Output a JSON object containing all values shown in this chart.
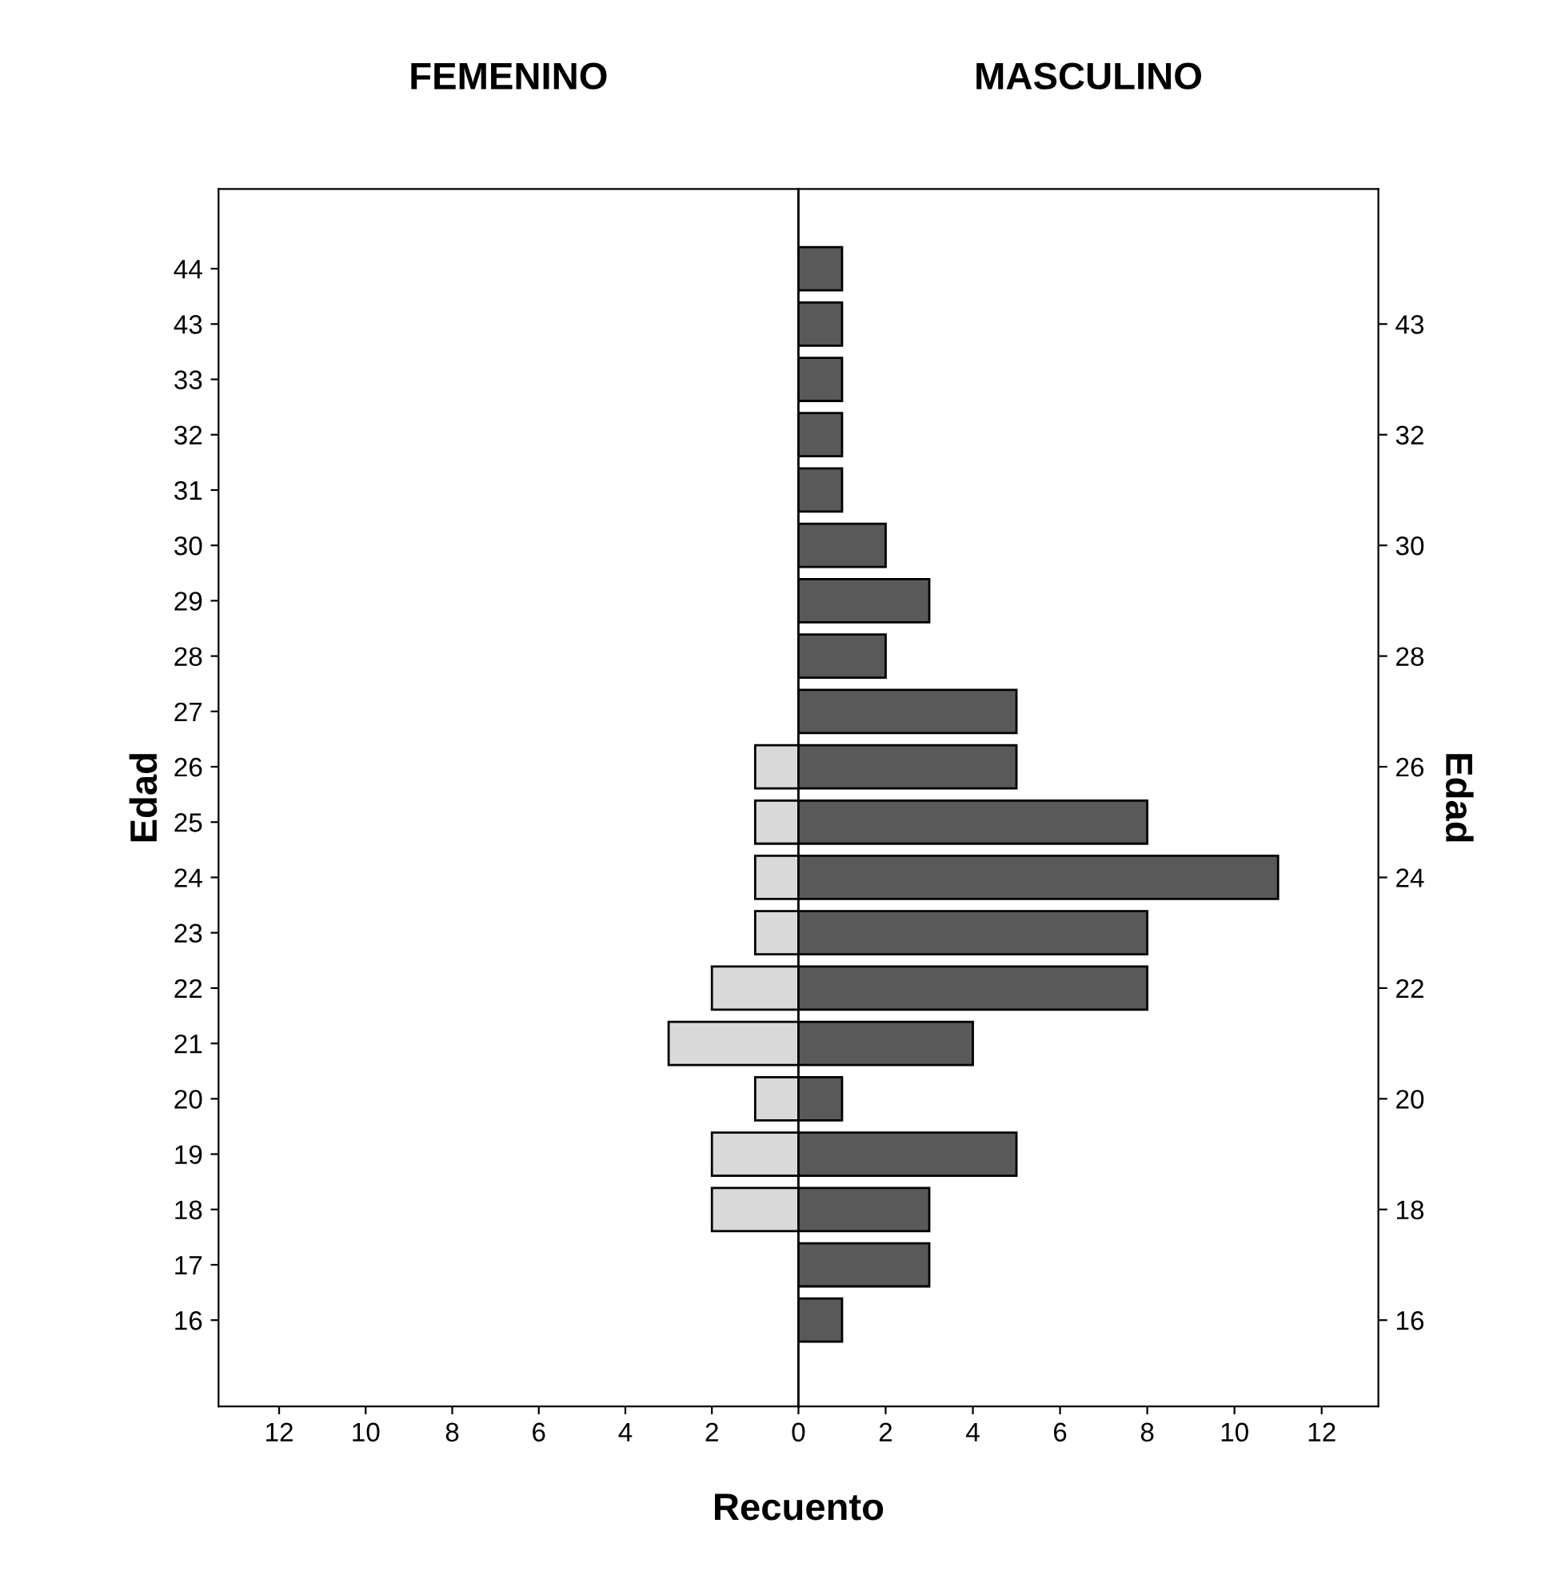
{
  "chart_data": [
    {
      "type": "bar",
      "orientation": "horizontal",
      "title": "FEMENINO",
      "ylabel": "Edad",
      "xlabel": "Recuento",
      "categories": [
        "44",
        "43",
        "33",
        "32",
        "31",
        "30",
        "29",
        "28",
        "27",
        "26",
        "25",
        "24",
        "23",
        "22",
        "21",
        "20",
        "19",
        "18",
        "17",
        "16"
      ],
      "series": [
        {
          "color": "#d9d9d9",
          "values": [
            null,
            null,
            null,
            null,
            null,
            null,
            null,
            null,
            null,
            1,
            1,
            1,
            1,
            2,
            3,
            1,
            2,
            2,
            null,
            null
          ]
        }
      ],
      "xlim": [
        13.4,
        0
      ],
      "xticks": [
        12,
        10,
        8,
        6,
        4,
        2
      ],
      "grid": false,
      "legend": false
    },
    {
      "type": "bar",
      "orientation": "horizontal",
      "title": "MASCULINO",
      "y2label": "Edad",
      "categories": [
        null,
        "43",
        null,
        "32",
        null,
        "30",
        null,
        "28",
        null,
        "26",
        null,
        "24",
        null,
        "22",
        null,
        "20",
        null,
        "18",
        null,
        "16"
      ],
      "series": [
        {
          "color": "#595959",
          "values": [
            1,
            1,
            1,
            1,
            1,
            2,
            3,
            2,
            5,
            5,
            8,
            11,
            8,
            8,
            4,
            1,
            5,
            3,
            3,
            1
          ]
        }
      ],
      "xlim": [
        0,
        13.3
      ],
      "xticks": [
        0,
        2,
        4,
        6,
        8,
        10,
        12
      ],
      "grid": false,
      "legend": false
    }
  ]
}
